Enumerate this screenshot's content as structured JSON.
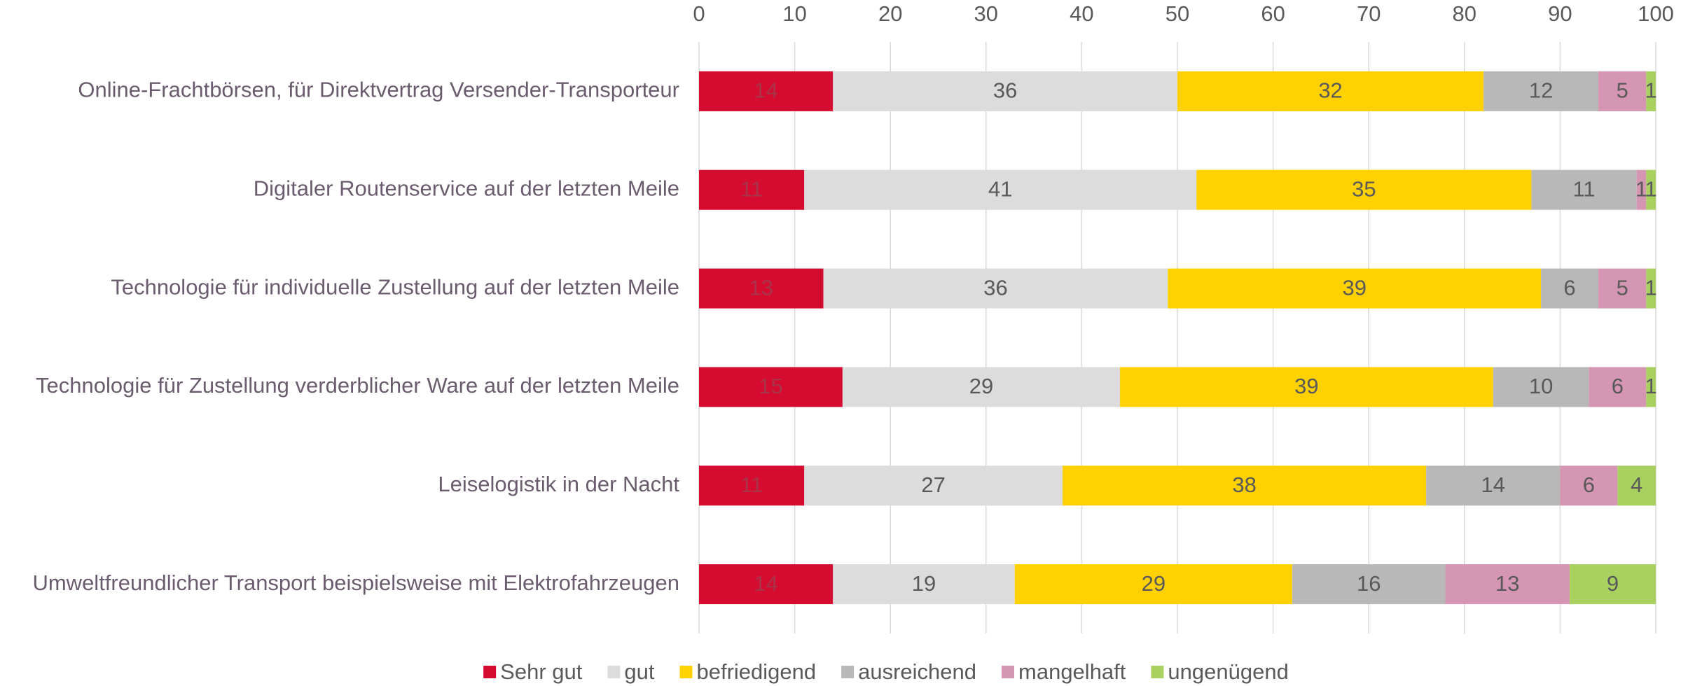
{
  "chart_data": {
    "type": "bar",
    "orientation": "horizontal",
    "stacked": true,
    "categories": [
      "Online-Frachtbörsen, für Direktvertrag Versender-Transporteur",
      "Digitaler Routenservice auf der letzten Meile",
      "Technologie für individuelle Zustellung auf der letzten Meile",
      "Technologie für Zustellung verderblicher Ware auf der letzten Meile",
      "Leiselogistik in der Nacht",
      "Umweltfreundlicher Transport beispielsweise mit Elektrofahrzeugen"
    ],
    "series": [
      {
        "name": "Sehr gut",
        "color": "#d50c2f",
        "values": [
          14,
          11,
          13,
          15,
          11,
          14
        ]
      },
      {
        "name": "gut",
        "color": "#dcdcdc",
        "values": [
          36,
          41,
          36,
          29,
          27,
          19
        ]
      },
      {
        "name": "befriedigend",
        "color": "#ffd100",
        "values": [
          32,
          35,
          39,
          39,
          38,
          29
        ]
      },
      {
        "name": "ausreichend",
        "color": "#b8b8b8",
        "values": [
          12,
          11,
          6,
          10,
          14,
          16
        ]
      },
      {
        "name": "mangelhaft",
        "color": "#d596b3",
        "values": [
          5,
          1,
          5,
          6,
          6,
          13
        ]
      },
      {
        "name": "ungenügend",
        "color": "#a8d160",
        "values": [
          1,
          1,
          1,
          1,
          4,
          9
        ]
      }
    ],
    "xlim": [
      0,
      100
    ],
    "xticks": [
      0,
      10,
      20,
      30,
      40,
      50,
      60,
      70,
      80,
      90,
      100
    ],
    "grid": true,
    "legend": "bottom"
  }
}
